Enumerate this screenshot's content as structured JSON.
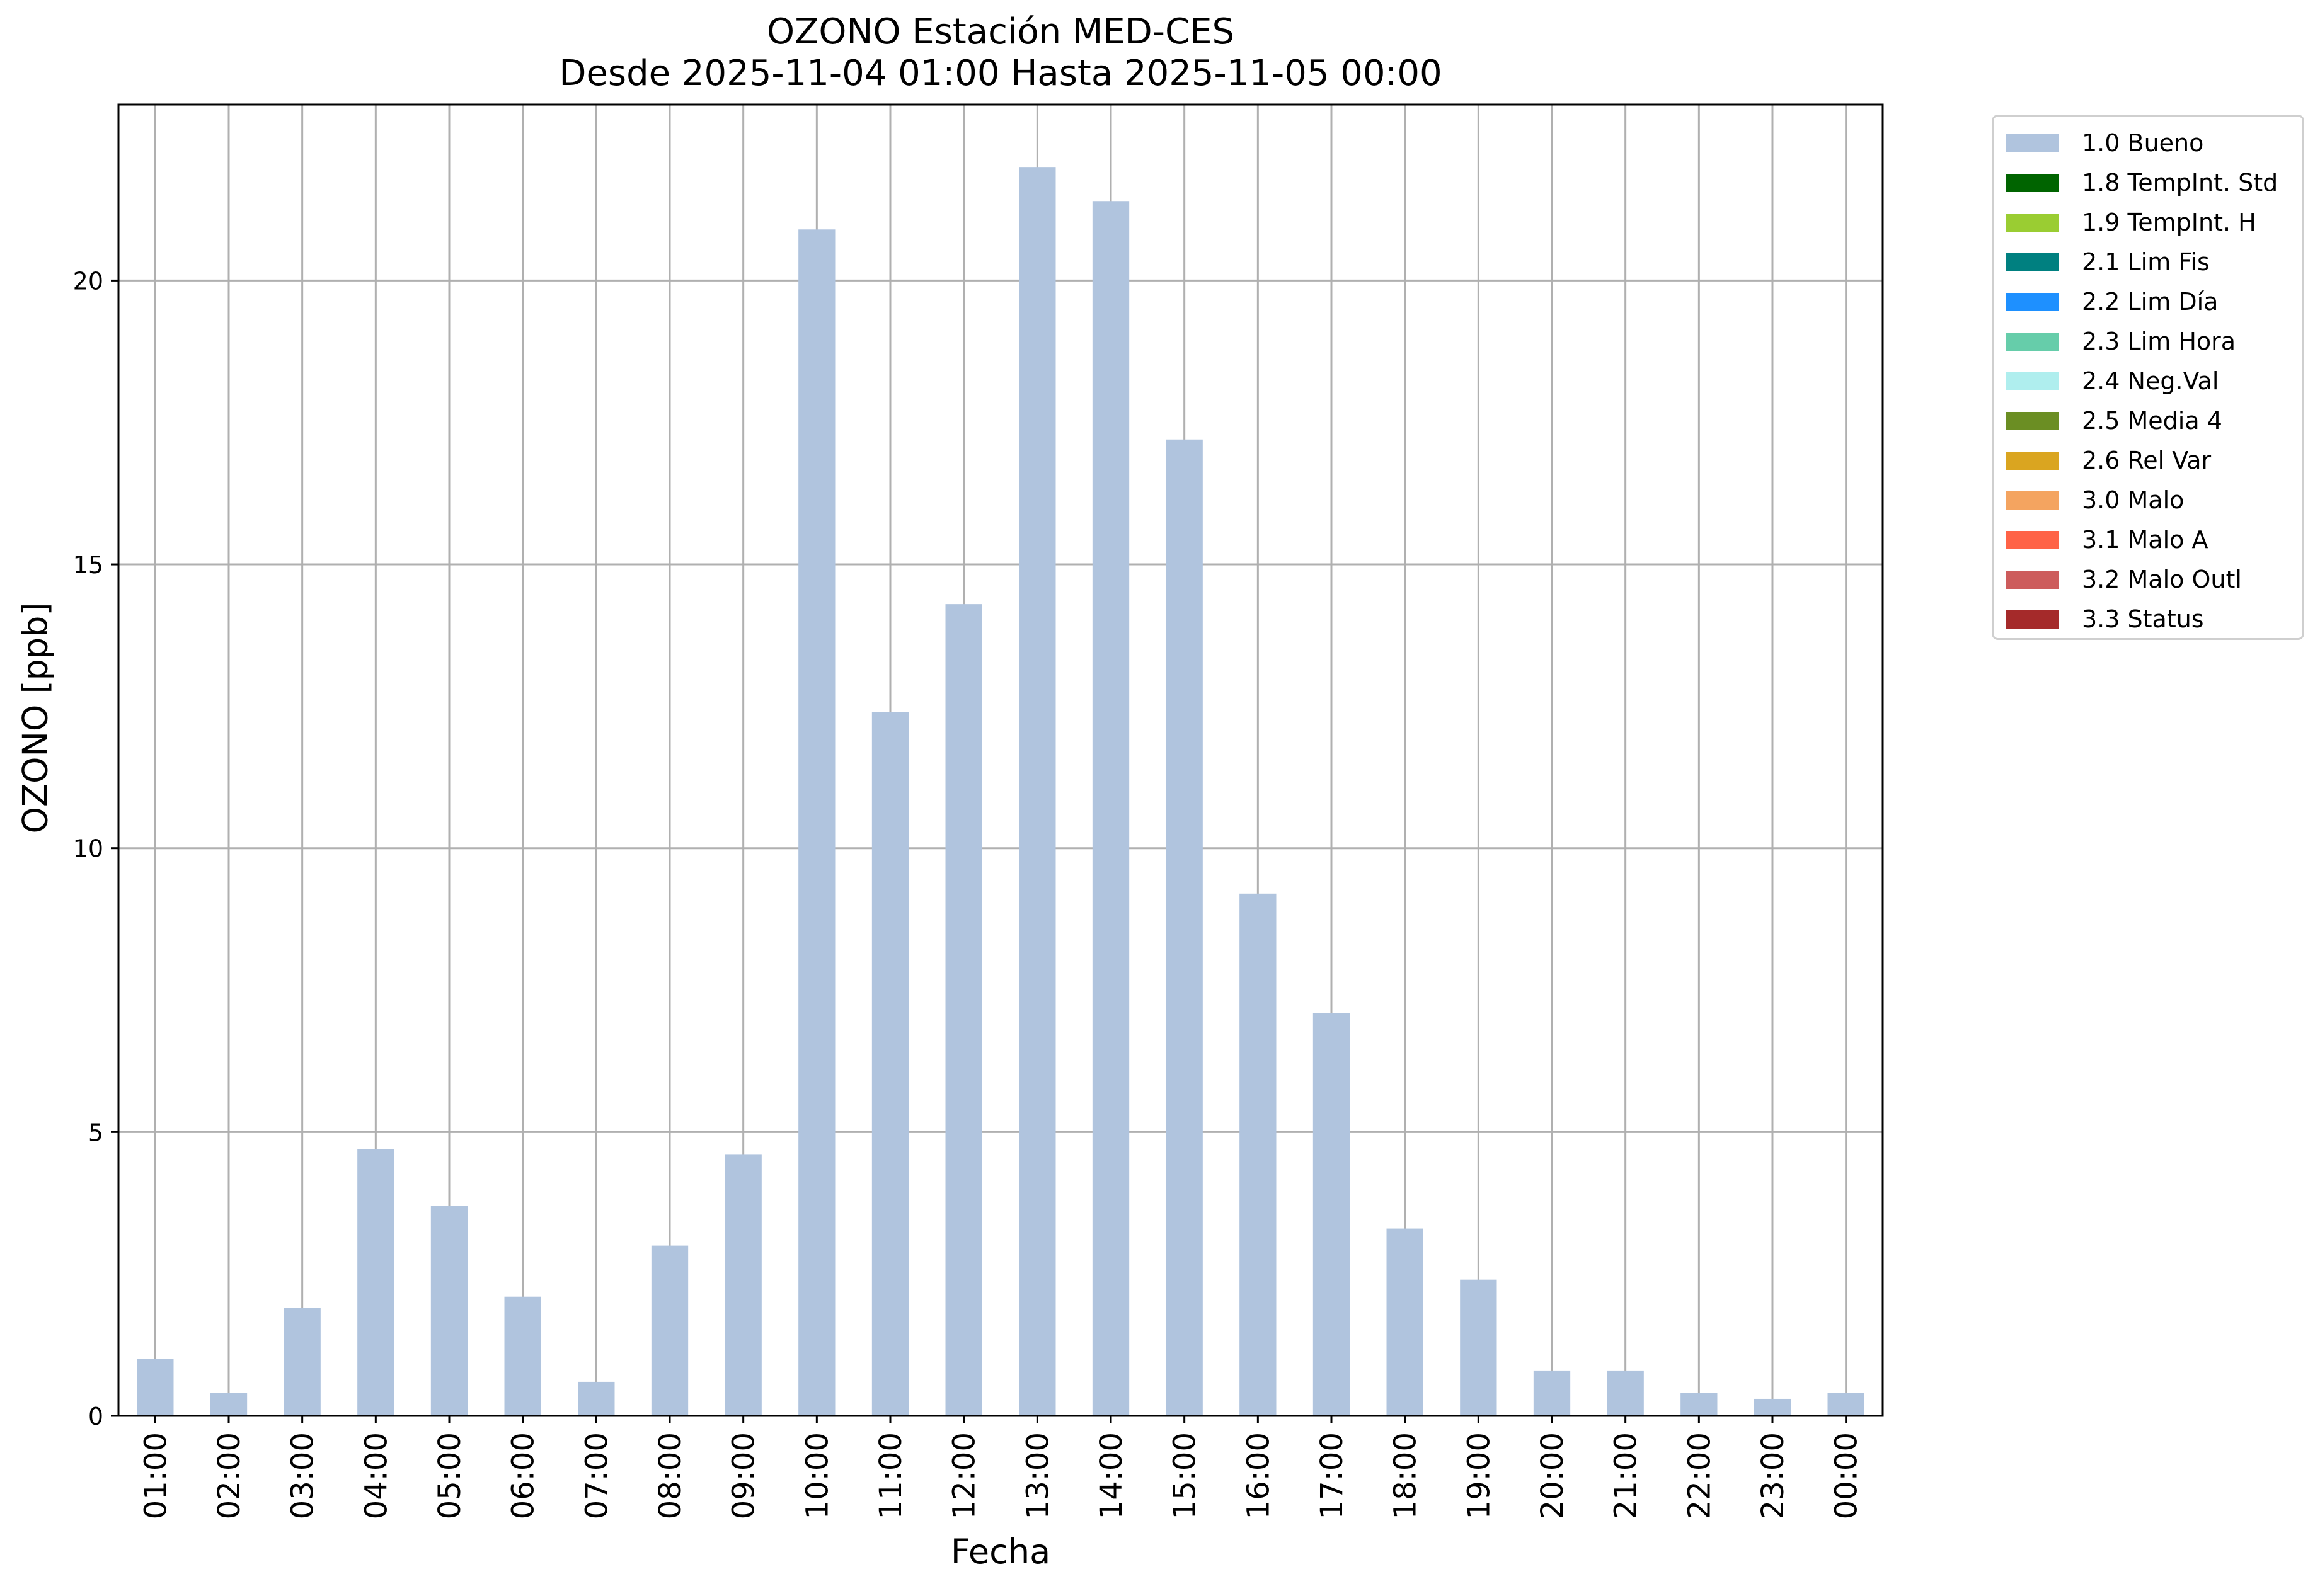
{
  "chart_data": {
    "type": "bar",
    "title": "OZONO Estación MED-CES",
    "subtitle": "Desde 2025-11-04 01:00 Hasta 2025-11-05 00:00",
    "xlabel": "Fecha",
    "ylabel": "OZONO [ppb]",
    "categories": [
      "01:00",
      "02:00",
      "03:00",
      "04:00",
      "05:00",
      "06:00",
      "07:00",
      "08:00",
      "09:00",
      "10:00",
      "11:00",
      "12:00",
      "13:00",
      "14:00",
      "15:00",
      "16:00",
      "17:00",
      "18:00",
      "19:00",
      "20:00",
      "21:00",
      "22:00",
      "23:00",
      "00:00"
    ],
    "series": [
      {
        "name": "1.0 Bueno",
        "color": "#b0c4de",
        "values": [
          1.0,
          0.4,
          1.9,
          4.7,
          3.7,
          2.1,
          0.6,
          3.0,
          4.6,
          20.9,
          12.4,
          14.3,
          22.0,
          21.4,
          17.2,
          9.2,
          7.1,
          3.3,
          2.4,
          0.8,
          0.8,
          0.4,
          0.3,
          0.4
        ]
      }
    ],
    "yticks": [
      0,
      5,
      10,
      15,
      20
    ],
    "ylim": [
      0,
      23.1
    ],
    "grid": true,
    "legend_position": "outside-top-right",
    "legend": [
      {
        "label": "1.0 Bueno",
        "color": "#b0c4de"
      },
      {
        "label": "1.8 TempInt. Std",
        "color": "#006400"
      },
      {
        "label": "1.9 TempInt. H",
        "color": "#9acd32"
      },
      {
        "label": "2.1 Lim Fis",
        "color": "#008080"
      },
      {
        "label": "2.2 Lim Día",
        "color": "#1e90ff"
      },
      {
        "label": "2.3 Lim Hora",
        "color": "#66cdaa"
      },
      {
        "label": "2.4 Neg.Val",
        "color": "#afeeee"
      },
      {
        "label": "2.5 Media 4",
        "color": "#6b8e23"
      },
      {
        "label": "2.6 Rel Var",
        "color": "#daa520"
      },
      {
        "label": "3.0 Malo",
        "color": "#f4a460"
      },
      {
        "label": "3.1 Malo A",
        "color": "#ff6347"
      },
      {
        "label": "3.2 Malo Outl",
        "color": "#cd5c5c"
      },
      {
        "label": "3.3 Status",
        "color": "#a52a2a"
      }
    ]
  }
}
